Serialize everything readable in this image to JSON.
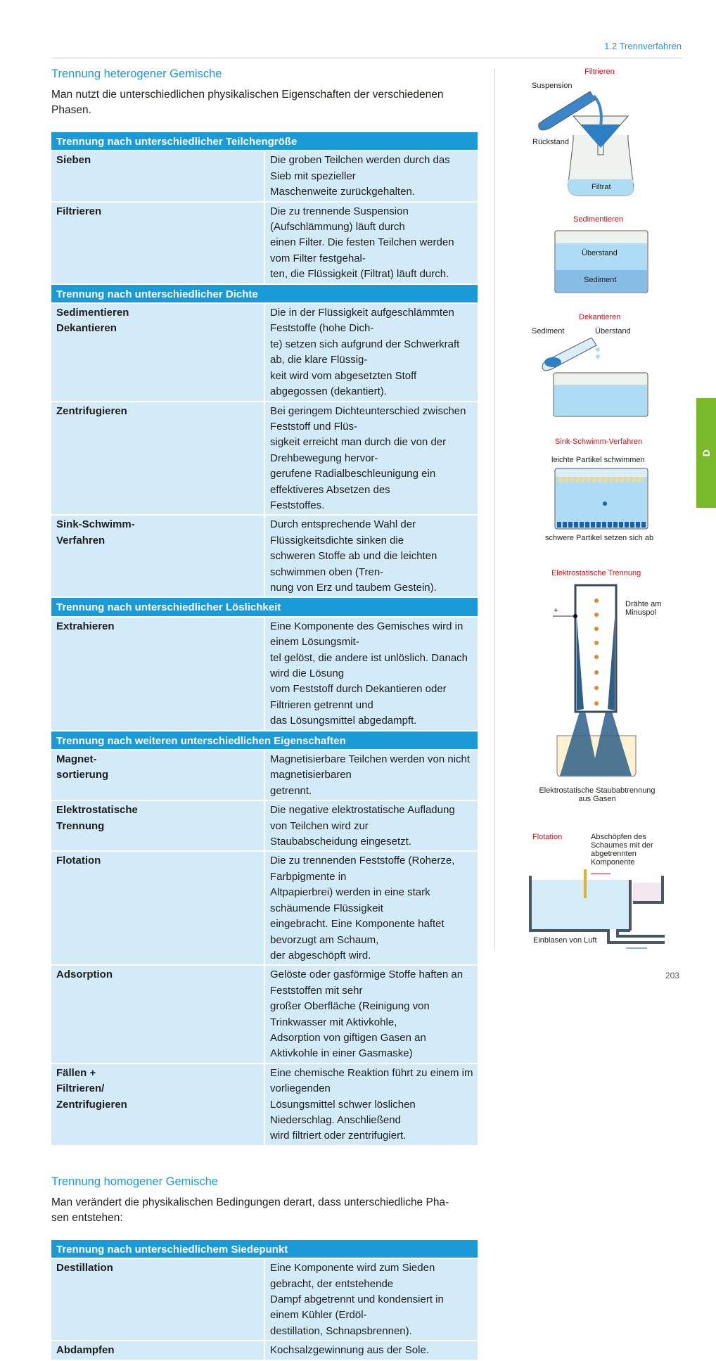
{
  "header": {
    "section": "1.2  Trennverfahren"
  },
  "side_tab": "D",
  "page_number": "203",
  "hetero": {
    "title": "Trennung heterogener Gemische",
    "intro": "Man nutzt die unterschiedlichen physikalischen Eigenschaften der verschiedenen\nPhasen.",
    "rows": [
      {
        "header": "Trennung nach unterschiedlicher Teilchengröße"
      },
      {
        "term": "Sieben",
        "desc": "Die groben Teilchen werden durch das Sieb mit spezieller\nMaschenweite zurückgehalten."
      },
      {
        "term": "Filtrieren",
        "desc": "Die zu trennende Suspension (Aufschlämmung) läuft durch\neinen Filter. Die festen Teilchen werden vom Filter festgehal-\nten, die Flüssigkeit (Filtrat) läuft durch."
      },
      {
        "header": "Trennung nach unterschiedlicher Dichte"
      },
      {
        "term": "Sedimentieren\nDekantieren",
        "desc": "Die in der Flüssigkeit aufgeschlämmten Feststoffe (hohe Dich-\nte) setzen sich aufgrund der Schwerkraft ab, die klare Flüssig-\nkeit wird vom abgesetzten Stoff abgegossen (dekantiert)."
      },
      {
        "term": "Zentrifugieren",
        "desc": "Bei geringem Dichteunterschied zwischen Feststoff und Flüs-\nsigkeit erreicht man durch die von der Drehbewegung hervor-\ngerufene Radialbeschleunigung ein effektiveres Absetzen des\nFeststoffes."
      },
      {
        "term": "Sink-Schwimm-\nVerfahren",
        "desc": "Durch entsprechende Wahl der Flüssigkeitsdichte sinken die\nschweren Stoffe ab und die leichten schwimmen oben (Tren-\nnung von Erz und taubem Gestein)."
      },
      {
        "header": "Trennung nach unterschiedlicher Löslichkeit"
      },
      {
        "term": "Extrahieren",
        "desc": "Eine Komponente des Gemisches wird in einem Lösungsmit-\ntel gelöst, die andere ist unlöslich. Danach wird die Lösung\nvom Feststoff durch Dekantieren oder Filtrieren getrennt und\ndas Lösungsmittel abgedampft."
      },
      {
        "header": "Trennung nach weiteren unterschiedlichen Eigenschaften"
      },
      {
        "term": "Magnet-\nsortierung",
        "desc": "Magnetisierbare Teilchen werden von nicht magnetisierbaren\ngetrennt."
      },
      {
        "term": "Elektrostatische\nTrennung",
        "desc": "Die negative elektrostatische Aufladung von Teilchen wird zur\nStaubabscheidung eingesetzt."
      },
      {
        "term": "Flotation",
        "desc": "Die zu trennenden Feststoffe (Roherze, Farbpigmente in\nAltpapierbrei) werden in eine stark schäumende Flüssigkeit\neingebracht. Eine Komponente haftet bevorzugt am Schaum,\nder abgeschöpft wird."
      },
      {
        "term": "Adsorption",
        "desc": "Gelöste oder gasförmige Stoffe haften an Feststoffen mit sehr\ngroßer Oberfläche (Reinigung von Trinkwasser mit Aktivkohle,\nAdsorption von giftigen Gasen an Aktivkohle in einer Gasmaske)"
      },
      {
        "term": "Fällen +\nFiltrieren/\nZentrifugieren",
        "desc": "Eine chemische Reaktion führt zu einem im vorliegenden\nLösungsmittel schwer löslichen Niederschlag. Anschließend\nwird filtriert oder zentrifugiert."
      }
    ]
  },
  "homo": {
    "title": "Trennung homogener Gemische",
    "intro": "Man verändert die physikalischen Bedingungen derart, dass unterschiedliche Pha-\nsen entstehen:",
    "rows": [
      {
        "header": "Trennung nach unterschiedlichem Siedepunkt"
      },
      {
        "term": "Destillation",
        "desc": "Eine Komponente wird zum Sieden gebracht, der entstehende\nDampf abgetrennt und kondensiert in einem Kühler (Erdöl-\ndestillation, Schnapsbrennen)."
      },
      {
        "term": "Abdampfen",
        "desc": "Kochsalzgewinnung aus der Sole."
      }
    ]
  },
  "figures": {
    "filtrieren": {
      "title": "Filtrieren",
      "suspension": "Suspension",
      "rueckstand": "Rückstand",
      "filtrat": "Filtrat"
    },
    "sedimentieren": {
      "title": "Sedimentieren",
      "ueberstand": "Überstand",
      "sediment": "Sediment"
    },
    "dekantieren": {
      "title": "Dekantieren",
      "sediment": "Sediment",
      "ueberstand": "Überstand"
    },
    "sink": {
      "title": "Sink-Schwimm-Verfahren",
      "top": "leichte Partikel schwimmen",
      "bottom": "schwere Partikel setzen sich ab"
    },
    "elektro": {
      "title": "Elektrostatische Trennung",
      "plus": "+",
      "wires": "Drähte am\nMinuspol",
      "caption": "Elektrostatische Staubabtrennung\naus Gasen"
    },
    "flotation": {
      "title": "Flotation",
      "skim": "Abschöpfen des\nSchaumes mit der\nabgetrennten\nKomponente",
      "air": "Einblasen von Luft"
    }
  },
  "colors": {
    "accent": "#1a9ad6",
    "row_bg": "#d3ebf8",
    "tab": "#7ab929",
    "figure_title": "#e30613"
  }
}
